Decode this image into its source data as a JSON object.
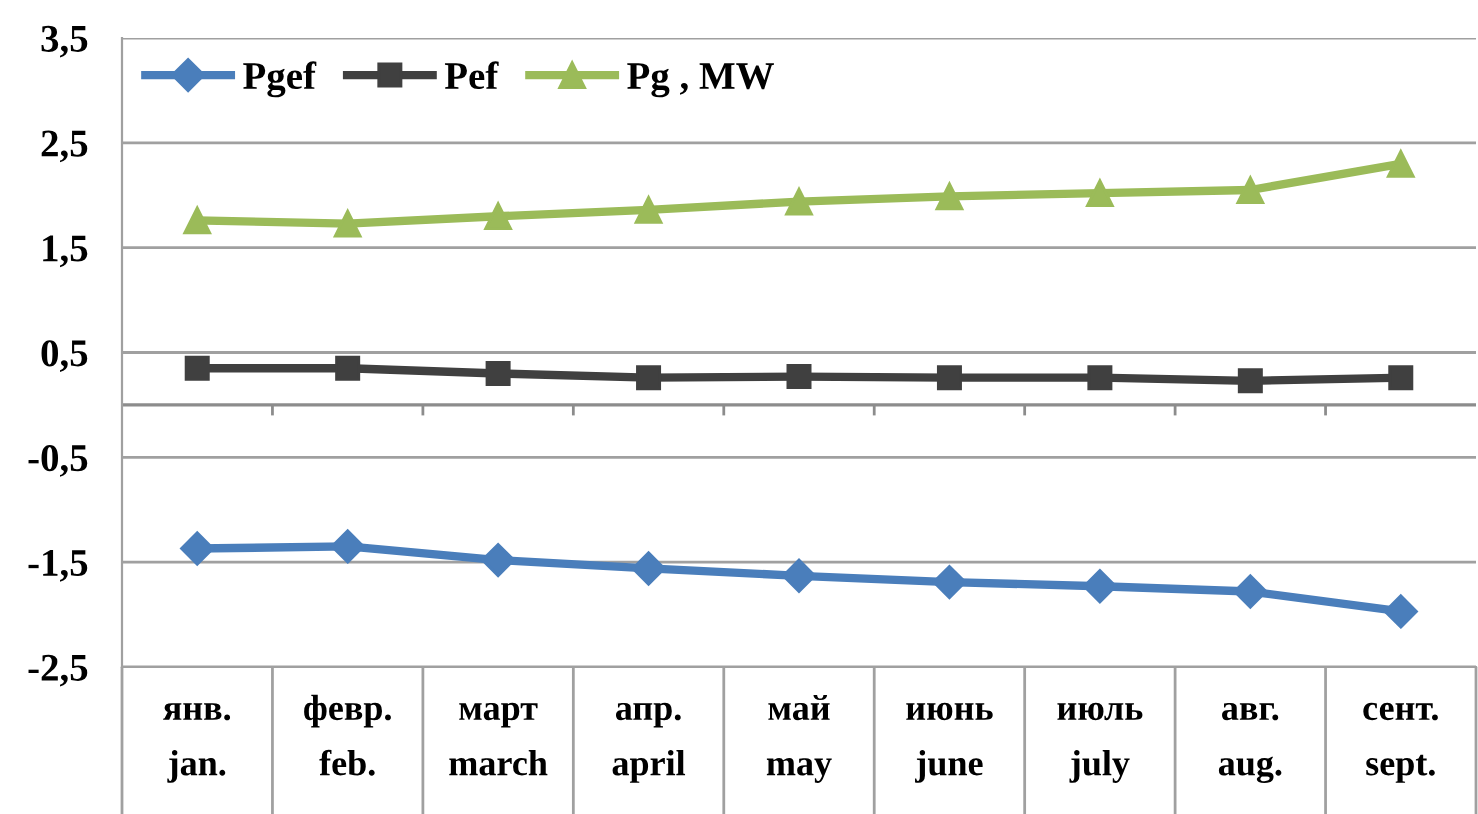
{
  "chart_data": {
    "type": "line",
    "categories": [
      "янв.\njan.",
      "февр.\nfeb.",
      "март\nmarch",
      "апр.\napril",
      "май\nmay",
      "июнь\njune",
      "июль\njuly",
      "авг.\naug.",
      "сент.\nsept."
    ],
    "series": [
      {
        "name": "Pgef",
        "color": "#4a7ebb",
        "marker": "diamond",
        "values": [
          -1.37,
          -1.35,
          -1.48,
          -1.56,
          -1.63,
          -1.69,
          -1.73,
          -1.78,
          -1.97
        ]
      },
      {
        "name": "Pef",
        "color": "#404040",
        "marker": "square",
        "values": [
          0.35,
          0.35,
          0.3,
          0.26,
          0.27,
          0.26,
          0.26,
          0.23,
          0.26
        ]
      },
      {
        "name": "Pg , MW",
        "color": "#9bbb59",
        "marker": "triangle",
        "values": [
          1.76,
          1.73,
          1.8,
          1.86,
          1.94,
          1.99,
          2.02,
          2.05,
          2.3
        ]
      }
    ],
    "ylim": [
      -2.5,
      3.5
    ],
    "yticks": [
      {
        "value": -2.5,
        "label": "-2,5"
      },
      {
        "value": -1.5,
        "label": "-1,5"
      },
      {
        "value": -0.5,
        "label": "-0,5"
      },
      {
        "value": 0.5,
        "label": "0,5"
      },
      {
        "value": 1.5,
        "label": "1,5"
      },
      {
        "value": 2.5,
        "label": "2,5"
      },
      {
        "value": 3.5,
        "label": "3,5"
      }
    ],
    "ref_lines": [
      {
        "axis": "y",
        "value": 0,
        "color": "#8c8c8c"
      }
    ],
    "grid": "y",
    "legend": "top left",
    "line_style": "solid"
  }
}
